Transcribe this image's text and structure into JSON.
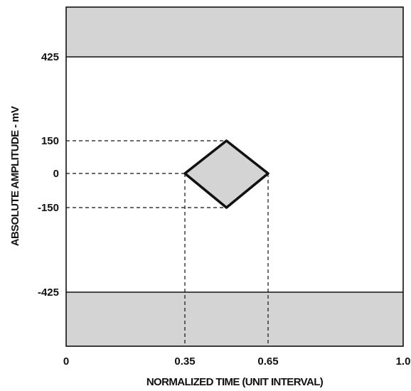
{
  "diagram": {
    "x_axis": {
      "label": "NORMALIZED TIME (UNIT INTERVAL)",
      "range": [
        0,
        1.0
      ],
      "ticks": [
        {
          "value": 0,
          "text": "0"
        },
        {
          "value": 0.35,
          "text": "0.35"
        },
        {
          "value": 0.65,
          "text": "0.65"
        },
        {
          "value": 1.0,
          "text": "1.0"
        }
      ]
    },
    "y_axis": {
      "label": "ABSOLUTE AMPLITUDE - mV",
      "ticks": [
        {
          "value": 425,
          "text": "425"
        },
        {
          "value": 150,
          "text": "150"
        },
        {
          "value": 0,
          "text": "0"
        },
        {
          "value": -150,
          "text": "-150"
        },
        {
          "value": -425,
          "text": "-425"
        }
      ]
    },
    "eye_mask": {
      "points": [
        {
          "t": 0.35,
          "mv": 0
        },
        {
          "t": 0.5,
          "mv": 150
        },
        {
          "t": 0.65,
          "mv": 0
        },
        {
          "t": 0.5,
          "mv": -150
        }
      ]
    },
    "forbidden_regions": [
      {
        "name": "upper",
        "from_mv": 425,
        "to": "top"
      },
      {
        "name": "lower",
        "from_mv": -425,
        "to": "bottom"
      }
    ],
    "colors": {
      "region_fill": "#d4d4d4",
      "line": "#111111"
    }
  }
}
